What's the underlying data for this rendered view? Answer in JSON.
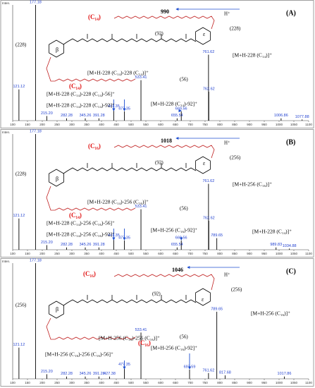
{
  "chart_data": [
    {
      "type": "bar",
      "y_label": "Inten.",
      "color": "#000000",
      "label_color": "#1f3fd0",
      "x": [
        121.12,
        177.18,
        215.2,
        282.28,
        345.26,
        391.28,
        441.35,
        477.35,
        533.41,
        655.54,
        669.56,
        761.62,
        762.62,
        1006.86,
        1077.88
      ],
      "value_labels": [
        "121.12",
        "177.18",
        "215.20",
        "282.28",
        "345.26",
        "391.28",
        "441.35",
        "477.35",
        "533.41",
        "655.54",
        "669.56",
        "761.62",
        "762.62",
        "1006.86",
        "1077.88"
      ],
      "values": [
        27,
        100,
        4,
        2,
        2,
        2,
        10,
        8,
        35,
        2,
        8,
        57,
        25,
        2,
        1
      ],
      "xlim": [
        100,
        1100
      ],
      "ylim": [
        0,
        100
      ],
      "xticks": [
        100,
        150,
        200,
        250,
        300,
        350,
        400,
        450,
        500,
        550,
        600,
        650,
        700,
        750,
        800,
        850,
        900,
        950,
        1000,
        1050,
        1100
      ],
      "annotations": [
        "(C₁₄)",
        "990",
        "H⁺",
        "(228)",
        "(228)",
        "β",
        "ε",
        "(92)",
        "(56)",
        "(C₁₄)",
        "[M+H-228 (C₁₄)]⁺",
        "[M+H-228 (C₁₄)-228 (C₁₄)]⁺",
        "[M+H-228 (C₁₄)-228 (C₁₄)-56]⁺",
        "[M+H-228 (C₁₄)-228 (C₁₄)-92]⁺",
        "[M+H-228 (C₁₄)-92]⁺",
        "(A)"
      ]
    },
    {
      "type": "bar",
      "y_label": "Inten.",
      "color": "#000000",
      "label_color": "#1f3fd0",
      "x": [
        121.12,
        177.18,
        215.2,
        282.28,
        345.26,
        391.28,
        441.35,
        477.35,
        533.41,
        655.54,
        669.56,
        761.62,
        762.62,
        789.65,
        989.83,
        1034.88
      ],
      "value_labels": [
        "121.12",
        "177.18",
        "215.20",
        "282.28",
        "345.26",
        "391.28",
        "441.35",
        "477.35",
        "533.41",
        "655.54",
        "669.56",
        "761.62",
        "762.62",
        "789.65",
        "989.83",
        "1034.88"
      ],
      "values": [
        27,
        100,
        4,
        2,
        2,
        2,
        10,
        8,
        35,
        2,
        8,
        57,
        25,
        10,
        2,
        1
      ],
      "xlim": [
        100,
        1100
      ],
      "ylim": [
        0,
        100
      ],
      "xticks": [
        100,
        150,
        200,
        250,
        300,
        350,
        400,
        450,
        500,
        550,
        600,
        650,
        700,
        750,
        800,
        850,
        900,
        950,
        1000,
        1050,
        1100
      ],
      "annotations": [
        "(C₁₆)",
        "1018",
        "H⁺",
        "(256)",
        "(228)",
        "β",
        "ε",
        "(92)",
        "(56)",
        "(C₁₄)",
        "[M+H-256 (C₁₆)]⁺",
        "[M+H-228 (C₁₄)-256 (C₁₆)]⁺",
        "[M+H-228 (C₁₄)-256 (C₁₆)-56]⁺",
        "[M+H-228 (C₁₄)-256 (C₁₆)-92]⁺",
        "[M+H-256 (C₁₆)-92]⁺",
        "[M+H-228 (C₁₄)]⁺",
        "(B)"
      ]
    },
    {
      "type": "bar",
      "y_label": "Inten.",
      "color": "#000000",
      "label_color": "#1f3fd0",
      "x": [
        121.12,
        177.18,
        215.2,
        282.28,
        345.26,
        391.28,
        427.38,
        477.35,
        533.41,
        697.59,
        761.62,
        789.65,
        817.68,
        1017.86
      ],
      "value_labels": [
        "121.12",
        "177.18",
        "215.20",
        "282.28",
        "345.26",
        "391.28",
        "427.38",
        "477.35",
        "533.41",
        "697.59",
        "761.62",
        "789.65",
        "817.68",
        "1017.86"
      ],
      "values": [
        27,
        100,
        4,
        2,
        2,
        2,
        2,
        10,
        40,
        8,
        5,
        58,
        3,
        2
      ],
      "xlim": [
        100,
        1100
      ],
      "ylim": [
        0,
        100
      ],
      "xticks": [
        100,
        150,
        200,
        250,
        300,
        350,
        400,
        450,
        500,
        550,
        600,
        650,
        700,
        750,
        800,
        850,
        900,
        950,
        1000,
        1050,
        1100
      ],
      "annotations": [
        "(C₁₆)",
        "1046",
        "H⁺",
        "(256)",
        "(256)",
        "β",
        "ε",
        "(92)",
        "(56)",
        "(C₁₆)",
        "[M+H-256 (C₁₆)]⁺",
        "[M+H-256 (C₁₆)-256 (C₁₆)]⁺",
        "[M+H-256 (C₁₆)-256 (C₁₆)-56]⁺",
        "[M+H-256 (C₁₆)-92]⁺",
        "(C)"
      ]
    }
  ]
}
